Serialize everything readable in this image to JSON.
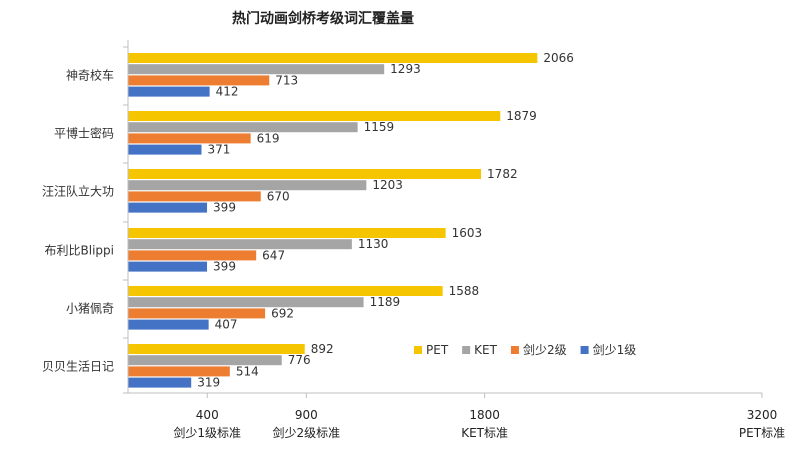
{
  "chart_data": {
    "type": "bar",
    "orientation": "horizontal",
    "title": "热门动画剑桥考级词汇覆盖量",
    "categories": [
      "神奇校车",
      "平博士密码",
      "汪汪队立大功",
      "布利比Blippi",
      "小猪佩奇",
      "贝贝生活日记"
    ],
    "series": [
      {
        "name": "PET",
        "color": "#F5C500",
        "values": [
          2066,
          1879,
          1782,
          1603,
          1588,
          892
        ]
      },
      {
        "name": "KET",
        "color": "#A5A5A5",
        "values": [
          1293,
          1159,
          1203,
          1130,
          1189,
          776
        ]
      },
      {
        "name": "剑少2级",
        "color": "#ED7D31",
        "values": [
          713,
          619,
          670,
          647,
          692,
          514
        ]
      },
      {
        "name": "剑少1级",
        "color": "#4472C4",
        "values": [
          412,
          371,
          399,
          399,
          407,
          319
        ]
      }
    ],
    "xlim": [
      0,
      3200
    ],
    "x_ticks": [
      {
        "value": 400,
        "number": "400",
        "label": "剑少1级标准"
      },
      {
        "value": 900,
        "number": "900",
        "label": "剑少2级标准"
      },
      {
        "value": 1800,
        "number": "1800",
        "label": "KET标准"
      },
      {
        "value": 3200,
        "number": "3200",
        "label": "PET标准"
      }
    ],
    "legend": {
      "position": "bottom-right",
      "items": [
        "PET",
        "KET",
        "剑少2级",
        "剑少1级"
      ]
    },
    "grid": false,
    "data_labels": true
  }
}
